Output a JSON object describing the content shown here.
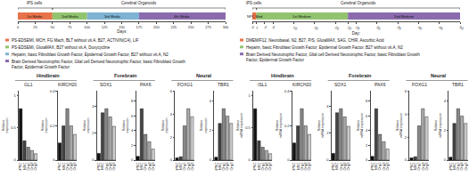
{
  "chart_data": [
    {
      "type": "timeline",
      "xlabel": "Days",
      "xlim": [
        0,
        300
      ],
      "xticks": [
        0,
        25,
        50,
        75,
        100,
        125,
        150,
        175,
        200,
        225,
        250,
        275,
        300
      ],
      "grid": false,
      "spans": [
        {
          "label": "iPS cells",
          "start": 0,
          "end": 50
        },
        {
          "label": "Cerebral Organoids",
          "start": 50,
          "end": 300
        }
      ],
      "series": [
        {
          "name": "1st Media",
          "start": 0,
          "end": 50,
          "color": "#E8734A",
          "description": "PS-EDSEMI, MCH, FG Mach, BLT without vit.A, B27, ACTIVIN(C4), LIF"
        },
        {
          "name": "2nd Media",
          "start": 50,
          "end": 100,
          "color": "#92C46F",
          "description": "PS-EDSEMI, GlutaMAX, B27 without vit.A, Doxycycline"
        },
        {
          "name": "3rd Media",
          "start": 100,
          "end": 175,
          "color": "#7FB3D3",
          "description": "Heparin, basic Fibroblast Growth Factor, Epidermal Growth Factor, B27 without vit.A, N2"
        },
        {
          "name": "4th Media",
          "start": 175,
          "end": 300,
          "color": "#8B6BAE",
          "description": "Brain Derived Neurotrophic Factor, Glial cell Derived Neurotrophic Factor, basic Fibroblast Growth Factor, Epidermal Growth Factor"
        }
      ]
    },
    {
      "type": "timeline",
      "xlabel": "Day:",
      "xlim": [
        0,
        50
      ],
      "xticks": [
        0,
        1,
        3,
        5,
        10,
        15,
        20,
        23,
        25,
        30,
        35,
        40,
        45,
        50
      ],
      "grid": false,
      "spans": [
        {
          "label": "iPS cells",
          "start": 0,
          "end": 1
        },
        {
          "label": "Cerebral Organoids",
          "start": 1,
          "end": 50
        }
      ],
      "series": [
        {
          "name": "NPC Med",
          "start": 0,
          "end": 1,
          "color": "#E8734A",
          "description": "DMEM/F12, Neurobasal, N2, B27, P/S, GlutaMAX, SAG, CHIR, Ascorbic Acid"
        },
        {
          "name": "1st Medium",
          "start": 1,
          "end": 23,
          "color": "#92C46F",
          "description": "Heparin, basic Fibroblast Growth Factor, Epidermal Growth Factor, B27 without vit.A, N2"
        },
        {
          "name": "2nd Medium",
          "start": 23,
          "end": 50,
          "color": "#8B6BAE",
          "description": "Brain Derived Neurotrophic Factor, Glial cell Derived Neurotrophic Factor, basic Fibroblast Growth Factor, Epidermal Growth Factor"
        }
      ]
    },
    {
      "type": "bar",
      "title": "Hindbrain",
      "charts": [
        {
          "title": "GL1",
          "categories": [
            "iPSC",
            "NSC",
            "Org1",
            "Org2",
            "Org3"
          ],
          "values": [
            0.8,
            0.3,
            0.2,
            0.15,
            0.1
          ],
          "colors": [
            "#111111",
            "#444444",
            "#888888",
            "#aaaaaa",
            "#cccccc"
          ],
          "ylabel": "Relative\nexpression",
          "ylim": [
            0,
            1.08
          ],
          "yticks": [
            0,
            0.5,
            1
          ],
          "grid": false
        },
        {
          "title": "KIRCH20",
          "categories": [
            "iPSC",
            "NSC",
            "Org1",
            "Org2",
            "Org3"
          ],
          "values": [
            0.1,
            0.2,
            0.3,
            0.2,
            0.15
          ],
          "colors": [
            "#111111",
            "#444444",
            "#888888",
            "#aaaaaa",
            "#cccccc"
          ],
          "ylabel": "Relative\nexpression",
          "ylim": [
            0,
            0.405
          ],
          "yticks": [
            0,
            0.2,
            0.4
          ],
          "grid": false
        }
      ]
    },
    {
      "type": "bar",
      "title": "Forebrain",
      "charts": [
        {
          "title": "SOX1",
          "categories": [
            "iPSC",
            "NSC",
            "Org1",
            "Org2",
            "Org3"
          ],
          "values": [
            0.5,
            3.5,
            3.8,
            3.2,
            2.5
          ],
          "colors": [
            "#111111",
            "#444444",
            "#888888",
            "#aaaaaa",
            "#cccccc"
          ],
          "ylabel": "Relative\nexpression",
          "ylim": [
            0,
            5.13
          ],
          "yticks": [
            0,
            2,
            4
          ],
          "grid": false
        },
        {
          "title": "PAX6",
          "categories": [
            "iPSC",
            "NSC",
            "Org1",
            "Org2",
            "Org3"
          ],
          "values": [
            0.5,
            7.0,
            3.5,
            2.5,
            1.5
          ],
          "colors": [
            "#111111",
            "#444444",
            "#888888",
            "#aaaaaa",
            "#cccccc"
          ],
          "ylabel": "Relative\nexpression",
          "ylim": [
            0,
            9.45
          ],
          "yticks": [
            0,
            2,
            4,
            6,
            8
          ],
          "grid": false
        }
      ]
    },
    {
      "type": "bar",
      "title": "Neural",
      "charts": [
        {
          "title": "FOXG1",
          "categories": [
            "iPSC",
            "NSC",
            "Org1",
            "Org2",
            "Org3"
          ],
          "values": [
            0.2,
            0.3,
            3.0,
            4.5,
            3.8
          ],
          "colors": [
            "#111111",
            "#444444",
            "#888888",
            "#aaaaaa",
            "#cccccc"
          ],
          "ylabel": "Relative\nexpression",
          "ylim": [
            0,
            6.075
          ],
          "yticks": [
            0,
            2,
            4,
            6
          ],
          "grid": false
        },
        {
          "title": "TBR1",
          "categories": [
            "iPSC",
            "NSC",
            "Org1",
            "Org2",
            "Org3"
          ],
          "values": [
            0.2,
            2.5,
            3.5,
            3.0,
            2.5
          ],
          "colors": [
            "#111111",
            "#444444",
            "#888888",
            "#aaaaaa",
            "#cccccc"
          ],
          "ylabel": "Relative\nexpression",
          "ylim": [
            0,
            4.725
          ],
          "yticks": [
            0,
            2,
            4
          ],
          "grid": false
        }
      ]
    },
    {
      "type": "bar",
      "title": "Hindbrain",
      "charts": [
        {
          "title": "ISL1",
          "categories": [
            "iPSC",
            "NSC",
            "Org1",
            "Org2",
            "Org3"
          ],
          "values": [
            0.8,
            0.3,
            0.2,
            0.15,
            0.1
          ],
          "colors": [
            "#111111",
            "#444444",
            "#888888",
            "#aaaaaa",
            "#cccccc"
          ],
          "ylabel": "Relative\nmRNA expression",
          "ylim": [
            0,
            1.08
          ],
          "yticks": [
            0,
            0.5,
            1
          ],
          "grid": false
        },
        {
          "title": "KIRCH20",
          "categories": [
            "iPSC",
            "NSC",
            "Org1",
            "Org2",
            "Org3"
          ],
          "values": [
            0.1,
            0.2,
            0.3,
            0.2,
            0.15
          ],
          "colors": [
            "#111111",
            "#444444",
            "#888888",
            "#aaaaaa",
            "#cccccc"
          ],
          "ylabel": "Relative\nmRNA expression",
          "ylim": [
            0,
            0.405
          ],
          "yticks": [
            0,
            0.2,
            0.4
          ],
          "grid": false
        }
      ]
    },
    {
      "type": "bar",
      "title": "Forebrain",
      "charts": [
        {
          "title": "SOX1",
          "categories": [
            "iPSC",
            "NSC",
            "Org1",
            "Org2",
            "Org3"
          ],
          "values": [
            0.5,
            3.5,
            3.8,
            3.2,
            2.5
          ],
          "colors": [
            "#111111",
            "#444444",
            "#888888",
            "#aaaaaa",
            "#cccccc"
          ],
          "ylabel": "Relative\nmRNA expression",
          "ylim": [
            0,
            5.13
          ],
          "yticks": [
            0,
            2,
            4
          ],
          "grid": false
        },
        {
          "title": "PAX6",
          "categories": [
            "iPSC",
            "NSC",
            "Org1",
            "Org2",
            "Org3"
          ],
          "values": [
            0.5,
            7.0,
            3.5,
            2.5,
            1.5
          ],
          "colors": [
            "#111111",
            "#444444",
            "#888888",
            "#aaaaaa",
            "#cccccc"
          ],
          "ylabel": "Relative\nmRNA expression",
          "ylim": [
            0,
            9.45
          ],
          "yticks": [
            0,
            2,
            4,
            6,
            8
          ],
          "grid": false
        }
      ]
    },
    {
      "type": "bar",
      "title": "Neural",
      "charts": [
        {
          "title": "FOXG1",
          "categories": [
            "iPSC",
            "NSC",
            "Org1",
            "Org2",
            "Org3"
          ],
          "values": [
            0.2,
            0.3,
            3.0,
            4.5,
            3.8
          ],
          "colors": [
            "#111111",
            "#444444",
            "#888888",
            "#aaaaaa",
            "#cccccc"
          ],
          "ylabel": "Relative\nmRNA expression",
          "ylim": [
            0,
            6.075
          ],
          "yticks": [
            0,
            2,
            4,
            6
          ],
          "grid": false
        },
        {
          "title": "TBR1",
          "categories": [
            "iPSC",
            "NSC",
            "Org1",
            "Org2",
            "Org3"
          ],
          "values": [
            0.2,
            2.5,
            3.5,
            3.0,
            2.5
          ],
          "colors": [
            "#111111",
            "#444444",
            "#888888",
            "#aaaaaa",
            "#cccccc"
          ],
          "ylabel": "Relative\nmRNA expression",
          "ylim": [
            0,
            4.725
          ],
          "yticks": [
            0,
            2,
            4
          ],
          "grid": false
        }
      ]
    }
  ]
}
